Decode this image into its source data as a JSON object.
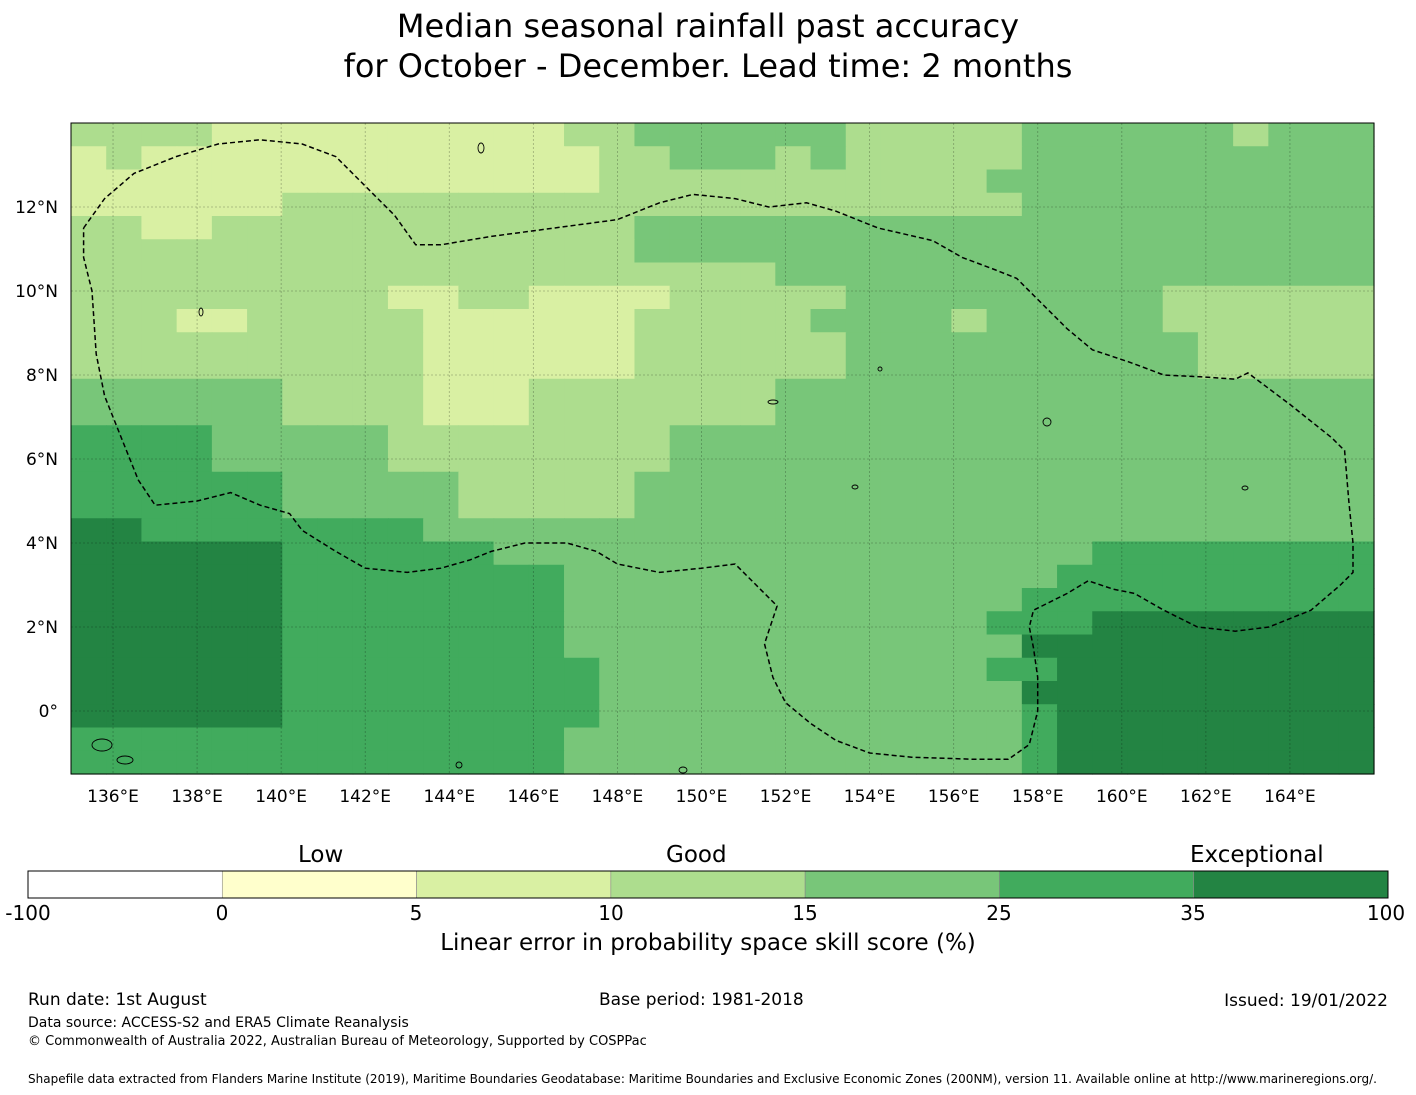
{
  "title_line1": "Median seasonal rainfall past accuracy",
  "title_line2": "for October - December. Lead time: 2 months",
  "map": {
    "lon_range": [
      135,
      166
    ],
    "lat_range": [
      -1.5,
      14
    ],
    "x_ticks": [
      "136°E",
      "138°E",
      "140°E",
      "142°E",
      "144°E",
      "146°E",
      "148°E",
      "150°E",
      "152°E",
      "154°E",
      "156°E",
      "158°E",
      "160°E",
      "162°E",
      "164°E"
    ],
    "x_tick_values": [
      136,
      138,
      140,
      142,
      144,
      146,
      148,
      150,
      152,
      154,
      156,
      158,
      160,
      162,
      164
    ],
    "y_ticks": [
      "12°N",
      "10°N",
      "8°N",
      "6°N",
      "4°N",
      "2°N",
      "0°"
    ],
    "y_tick_values": [
      12,
      10,
      8,
      6,
      4,
      2,
      0
    ],
    "grid": true,
    "boundary_style": "dashed",
    "boundary_path": [
      [
        135.3,
        11.5
      ],
      [
        135.8,
        12.2
      ],
      [
        136.5,
        12.8
      ],
      [
        137.5,
        13.2
      ],
      [
        138.5,
        13.5
      ],
      [
        139.5,
        13.6
      ],
      [
        140.5,
        13.5
      ],
      [
        141.3,
        13.2
      ],
      [
        142.0,
        12.5
      ],
      [
        142.7,
        11.8
      ],
      [
        143.2,
        11.1
      ],
      [
        143.8,
        11.1
      ],
      [
        145.0,
        11.3
      ],
      [
        146.5,
        11.5
      ],
      [
        148.0,
        11.7
      ],
      [
        149.0,
        12.1
      ],
      [
        149.8,
        12.3
      ],
      [
        150.8,
        12.2
      ],
      [
        151.6,
        12.0
      ],
      [
        152.5,
        12.1
      ],
      [
        153.2,
        11.9
      ],
      [
        154.2,
        11.5
      ],
      [
        155.5,
        11.2
      ],
      [
        156.2,
        10.8
      ],
      [
        157.0,
        10.5
      ],
      [
        157.5,
        10.3
      ],
      [
        158.0,
        9.8
      ],
      [
        158.7,
        9.1
      ],
      [
        159.3,
        8.6
      ],
      [
        160.2,
        8.3
      ],
      [
        161.0,
        8.0
      ],
      [
        162.0,
        7.95
      ],
      [
        162.7,
        7.9
      ],
      [
        163.0,
        8.05
      ],
      [
        164.0,
        7.3
      ],
      [
        165.0,
        6.5
      ],
      [
        165.3,
        6.2
      ],
      [
        165.4,
        5.0
      ],
      [
        165.5,
        4.0
      ],
      [
        165.5,
        3.3
      ],
      [
        165.2,
        3.0
      ],
      [
        164.5,
        2.4
      ],
      [
        163.5,
        2.0
      ],
      [
        162.7,
        1.9
      ],
      [
        161.8,
        2.0
      ],
      [
        161.0,
        2.4
      ],
      [
        160.3,
        2.8
      ],
      [
        159.8,
        2.9
      ],
      [
        159.2,
        3.1
      ],
      [
        158.7,
        2.8
      ],
      [
        158.3,
        2.6
      ],
      [
        157.9,
        2.4
      ],
      [
        157.8,
        2.0
      ],
      [
        157.9,
        1.5
      ],
      [
        158.0,
        0.8
      ],
      [
        158.0,
        0.0
      ],
      [
        157.8,
        -0.8
      ],
      [
        157.3,
        -1.15
      ],
      [
        156.5,
        -1.15
      ],
      [
        155.0,
        -1.1
      ],
      [
        154.0,
        -1.0
      ],
      [
        153.2,
        -0.7
      ],
      [
        152.6,
        -0.3
      ],
      [
        152.0,
        0.2
      ],
      [
        151.7,
        0.8
      ],
      [
        151.5,
        1.6
      ],
      [
        151.8,
        2.5
      ],
      [
        151.3,
        3.0
      ],
      [
        150.8,
        3.5
      ],
      [
        150.0,
        3.4
      ],
      [
        149.0,
        3.3
      ],
      [
        148.0,
        3.5
      ],
      [
        147.5,
        3.8
      ],
      [
        146.8,
        4.0
      ],
      [
        145.8,
        4.0
      ],
      [
        145.0,
        3.8
      ],
      [
        144.5,
        3.6
      ],
      [
        143.8,
        3.4
      ],
      [
        143.0,
        3.3
      ],
      [
        142.0,
        3.4
      ],
      [
        141.3,
        3.8
      ],
      [
        140.5,
        4.3
      ],
      [
        140.2,
        4.7
      ],
      [
        139.5,
        4.9
      ],
      [
        138.8,
        5.2
      ],
      [
        138.0,
        5.0
      ],
      [
        137.0,
        4.9
      ],
      [
        136.6,
        5.5
      ],
      [
        136.2,
        6.5
      ],
      [
        135.8,
        7.5
      ],
      [
        135.6,
        8.5
      ],
      [
        135.5,
        10.0
      ],
      [
        135.3,
        10.8
      ],
      [
        135.3,
        11.5
      ]
    ],
    "grid_columns": 37,
    "grid_rows": 28,
    "cell_categories": [
      "3333222222222233444444333334444443444",
      "2322222222222223344434333334444444444",
      "2222222222222223333333333344444444444",
      "2222223333333333333333333334444444444",
      "3322333333333333444444444444444444444",
      "3333333333333333444444444444444444444",
      "3333333333333333333344444444444444444",
      "3333333332233222233333444444444333333",
      "3332233333222222333334444344444333333",
      "3333333333222222333333444444444433333",
      "3333333333222222333333444444444433333",
      "4444443333222333333344444444444444444",
      "4444443333222333333344444444444444444",
      "5555444443333333344444444444444444444",
      "5555444443333333344444444444444444444",
      "5555554444433333444444444444444444444",
      "5555554444433333444444444444444444444",
      "6655555555444444444444444444444444444",
      "6666665555554444444444444444455555555",
      "6666665555555544444444444444555555555",
      "6666665555555544444444444445555555555",
      "6666665555555544444444444455566666666",
      "6666665555555544444444444446666666666",
      "6666665555555554444444444455666666666",
      "6666665555555554444444444446666666666",
      "6666665555555554444444444445666666666",
      "5555555555555544444444444445666666666",
      "5555555555555544444444444445666666666"
    ]
  },
  "colorbar": {
    "categories": [
      {
        "label": "Low"
      },
      {
        "label": "Good"
      },
      {
        "label": "Exceptional"
      }
    ],
    "colors": [
      "#ffffff",
      "#ffffcc",
      "#d9f0a3",
      "#addd8e",
      "#78c679",
      "#41ab5d",
      "#238443"
    ],
    "ticks": [
      "-100",
      "0",
      "5",
      "10",
      "15",
      "25",
      "35",
      "100"
    ],
    "title": "Linear error in probability space skill score (%)"
  },
  "footer": {
    "run_date": "Run date: 1st August",
    "base_period": "Base period: 1981-2018",
    "issued": "Issued: 19/01/2022",
    "data_source": "Data source: ACCESS-S2 and ERA5 Climate Reanalysis",
    "copyright": "© Commonwealth of Australia 2022, Australian Bureau of Meteorology, Supported by COSPPac",
    "shapefile": "Shapefile data extracted from Flanders Marine Institute (2019), Maritime Boundaries Geodatabase: Maritime Boundaries and Exclusive Economic Zones (200NM), version 11. Available online at http://www.marineregions.org/."
  }
}
